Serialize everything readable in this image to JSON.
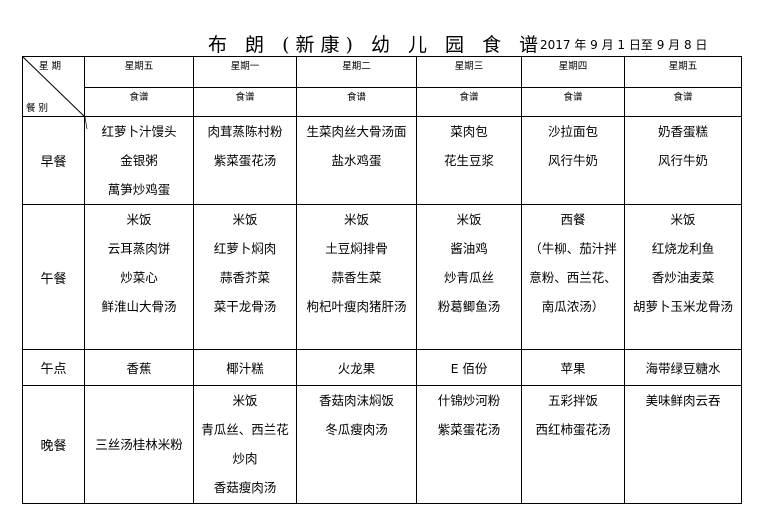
{
  "title": "布 朗 (新康) 幼 儿 园 食 谱",
  "date_range": "2017 年 9 月 1 日至 9 月 8 日",
  "corner": {
    "top": "星 期",
    "bottom": "餐 别"
  },
  "days": [
    "星期五",
    "星期一",
    "星期二",
    "星期三",
    "星期四",
    "星期五"
  ],
  "subheader": "食谱",
  "meals": [
    {
      "label": "早餐",
      "cells": [
        [
          "红萝卜汁馒头",
          "金银粥",
          "萬笋炒鸡蛋"
        ],
        [
          "肉茸蒸陈村粉",
          "紫菜蛋花汤"
        ],
        [
          "生菜肉丝大骨汤面",
          "盐水鸡蛋"
        ],
        [
          "菜肉包",
          "花生豆浆"
        ],
        [
          "沙拉面包",
          "风行牛奶"
        ],
        [
          "奶香蛋糕",
          "风行牛奶"
        ]
      ]
    },
    {
      "label": "午餐",
      "cells": [
        [
          "米饭",
          "云耳蒸肉饼",
          "炒菜心",
          "鲜淮山大骨汤"
        ],
        [
          "米饭",
          "红萝卜焖肉",
          "蒜香芥菜",
          "菜干龙骨汤"
        ],
        [
          "米饭",
          "土豆焖排骨",
          "蒜香生菜",
          "枸杞叶瘦肉猪肝汤"
        ],
        [
          "米饭",
          "酱油鸡",
          "炒青瓜丝",
          "粉葛鲫鱼汤"
        ],
        [
          "西餐",
          "（牛柳、茄汁拌",
          "意粉、西兰花、",
          "南瓜浓汤）"
        ],
        [
          "米饭",
          "红烧龙利鱼",
          "香炒油麦菜",
          "胡萝卜玉米龙骨汤"
        ]
      ]
    },
    {
      "label": "午点",
      "cells": [
        [
          "香蕉"
        ],
        [
          "椰汁糕"
        ],
        [
          "火龙果"
        ],
        [
          "E 佰份"
        ],
        [
          "苹果"
        ],
        [
          "海带绿豆糖水"
        ]
      ]
    },
    {
      "label": "晚餐",
      "cells": [
        [
          "三丝汤桂林米粉"
        ],
        [
          "米饭",
          "青瓜丝、西兰花",
          "炒肉",
          "香菇瘦肉汤"
        ],
        [
          "香菇肉沫焖饭",
          "冬瓜瘦肉汤"
        ],
        [
          "什锦炒河粉",
          "紫菜蛋花汤"
        ],
        [
          "五彩拌饭",
          "西红柿蛋花汤"
        ],
        [
          "美味鲜肉云吞"
        ]
      ]
    }
  ]
}
